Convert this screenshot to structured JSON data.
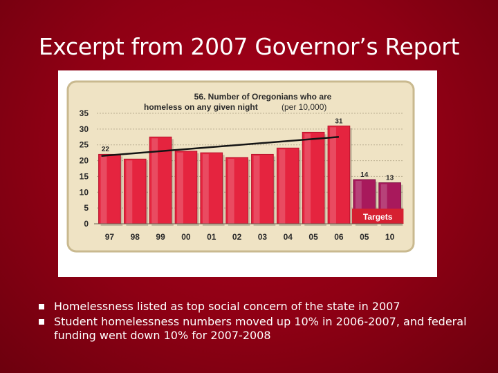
{
  "slide": {
    "title": "Excerpt from 2007 Governor’s Report",
    "bullets": [
      "Homelessness listed as top social concern of the state in 2007",
      "Student homelessness numbers moved up 10% in 2006-2007, and federal funding went down 10% for 2007-2008"
    ]
  },
  "chart_data": {
    "type": "bar",
    "title": "56. Number of Oregonians who are homeless on any given night",
    "title_lines": [
      "56. Number of Oregonians who are",
      "homeless on any given night"
    ],
    "subtitle": "(per 10,000)",
    "categories": [
      "97",
      "98",
      "99",
      "00",
      "01",
      "02",
      "03",
      "04",
      "05",
      "06",
      "05",
      "10"
    ],
    "values": [
      22,
      20.5,
      27.5,
      23,
      22.5,
      21,
      22,
      24,
      29,
      31,
      14,
      13
    ],
    "data_labels": [
      "22",
      "",
      "",
      "",
      "",
      "",
      "",
      "",
      "",
      "31",
      "14",
      "13"
    ],
    "target_flags": [
      false,
      false,
      false,
      false,
      false,
      false,
      false,
      false,
      false,
      false,
      true,
      true
    ],
    "target_label": "Targets",
    "ylim": [
      0,
      35
    ],
    "yticks": [
      "0",
      "5",
      "10",
      "15",
      "20",
      "25",
      "30",
      "35"
    ],
    "trend_line": {
      "from_category_index": 0,
      "to_category_index": 9,
      "from_value": 21.5,
      "to_value": 27.5
    },
    "grid": true,
    "colors": {
      "bar": "#e5243f",
      "target_bar": "#a8195c",
      "panel": "#efe3c4",
      "frame": "#c9b98f",
      "targets_box": "#d62031",
      "text": "#2a2a2a"
    }
  }
}
